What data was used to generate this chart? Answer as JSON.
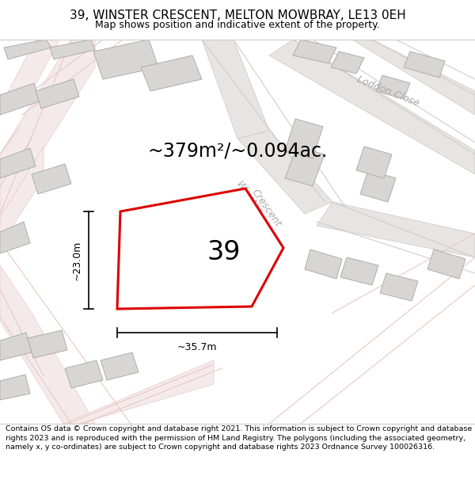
{
  "title": "39, WINSTER CRESCENT, MELTON MOWBRAY, LE13 0EH",
  "subtitle": "Map shows position and indicative extent of the property.",
  "area_text": "~379m²/~0.094ac.",
  "number_label": "39",
  "dim_width": "~35.7m",
  "dim_height": "~23.0m",
  "footer": "Contains OS data © Crown copyright and database right 2021. This information is subject to Crown copyright and database rights 2023 and is reproduced with the permission of HM Land Registry. The polygons (including the associated geometry, namely x, y co-ordinates) are subject to Crown copyright and database rights 2023 Ordnance Survey 100026316.",
  "bg_color": "#ffffff",
  "map_bg": "#f9f7f7",
  "property_fill": "#ffffff",
  "property_edge": "#dd0000",
  "building_fill": "#d8d5d5",
  "building_edge": "#b0acac",
  "road_fill_light": "#f5eaea",
  "road_edge_light": "#e8c8c8",
  "road_fill_gray": "#e8e4e4",
  "road_edge_gray": "#d0cccc",
  "street_label_color": "#aaaaaa",
  "annotation_color": "#000000",
  "title_fontsize": 11,
  "subtitle_fontsize": 9,
  "area_fontsize": 17,
  "number_fontsize": 24,
  "dim_fontsize": 9,
  "street_fontsize": 9,
  "footer_fontsize": 6.8
}
